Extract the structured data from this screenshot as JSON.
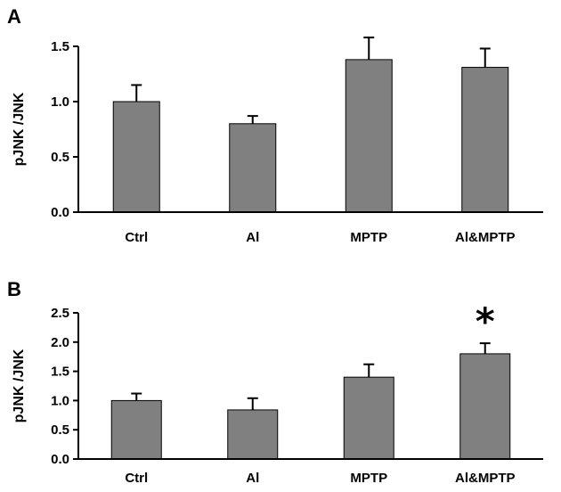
{
  "colors": {
    "bar": "#808080",
    "bar_stroke": "#000000",
    "axis": "#000000"
  },
  "chart_data": [
    {
      "type": "bar",
      "panel_label": "A",
      "categories": [
        "Ctrl",
        "Al",
        "MPTP",
        "Al&MPTP"
      ],
      "values": [
        1.0,
        0.8,
        1.38,
        1.31
      ],
      "errors": [
        0.15,
        0.07,
        0.2,
        0.17
      ],
      "ylabel": "pJNK /JNK",
      "ylim": [
        0,
        1.5
      ],
      "yticks": [
        "0.0",
        "0.5",
        "1.0",
        "1.5"
      ],
      "annotations": []
    },
    {
      "type": "bar",
      "panel_label": "B",
      "categories": [
        "Ctrl",
        "Al",
        "MPTP",
        "Al&MPTP"
      ],
      "values": [
        1.0,
        0.84,
        1.4,
        1.8
      ],
      "errors": [
        0.12,
        0.2,
        0.22,
        0.18
      ],
      "ylabel": "pJNK /JNK",
      "ylim": [
        0,
        2.5
      ],
      "yticks": [
        "0.0",
        "0.5",
        "1.0",
        "1.5",
        "2.0",
        "2.5"
      ],
      "annotations": [
        {
          "category": "Al&MPTP",
          "text": "*"
        }
      ]
    }
  ]
}
